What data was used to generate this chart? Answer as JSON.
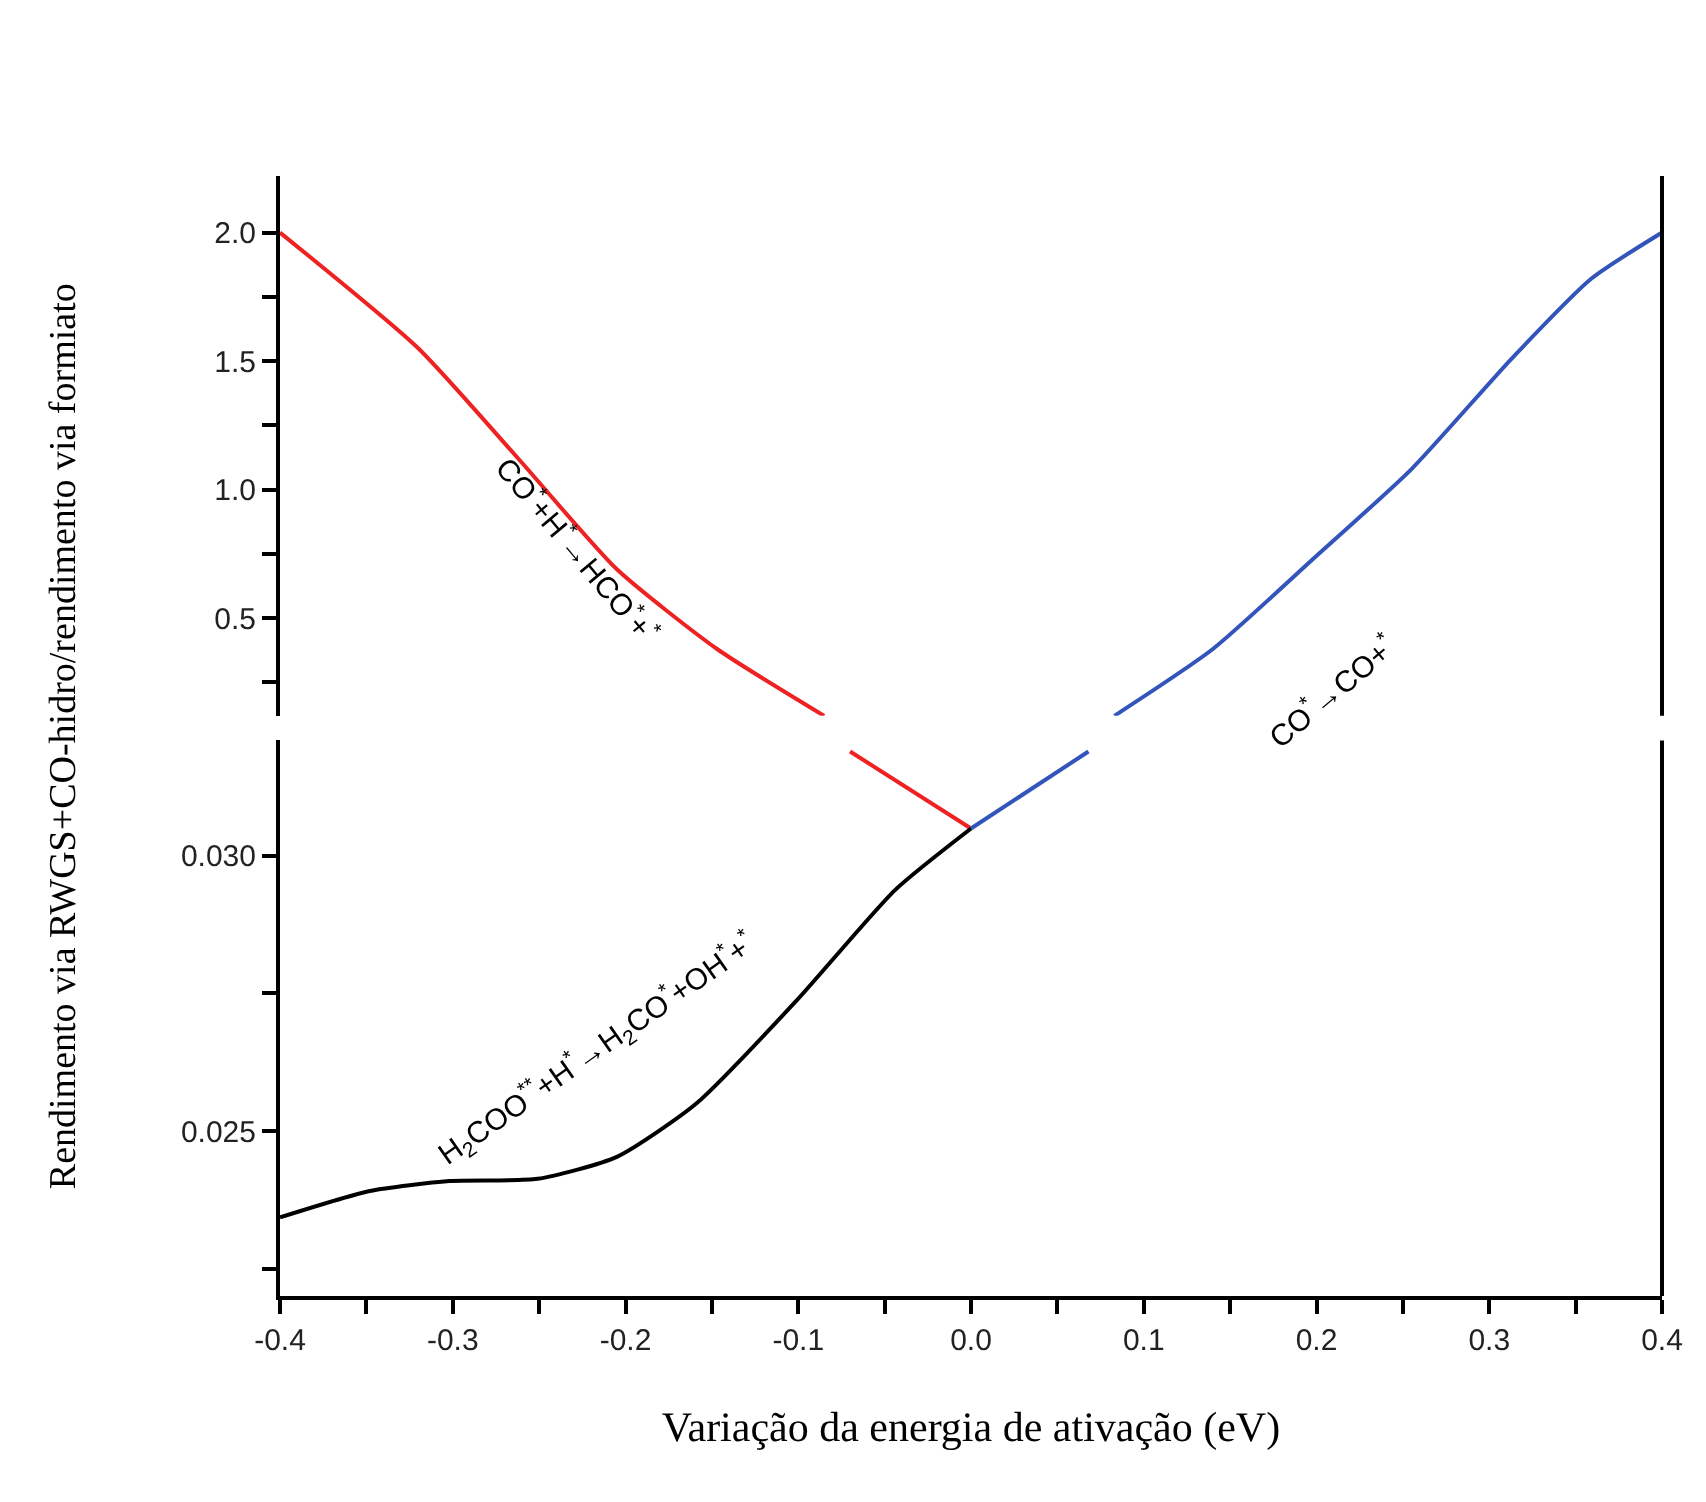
{
  "chart_data": [
    {
      "type": "line",
      "xlim": [
        -0.4,
        0.4
      ],
      "ylim": [
        0.12,
        2.22
      ],
      "tick_labels": "y",
      "line_style": "solid",
      "marker": "none",
      "yticks": [
        {
          "value": 0.25,
          "label": null
        },
        0.5,
        {
          "value": 0.75,
          "label": null
        },
        {
          "value": 1,
          "label": "1.0"
        },
        {
          "value": 1.25,
          "label": null
        },
        1.5,
        {
          "value": 1.75,
          "label": null
        },
        {
          "value": 2,
          "label": "2.0"
        }
      ],
      "series": [
        {
          "color": "#ee2222",
          "x": [
            -0.4,
            -0.32,
            -0.262,
            -0.205,
            -0.147,
            -0.085
          ],
          "values": [
            2.0,
            1.55,
            1.12,
            0.69,
            0.38,
            0.12
          ]
        },
        {
          "color": "#3355bb",
          "x": [
            0.083,
            0.14,
            0.198,
            0.255,
            0.313,
            0.359,
            0.4
          ],
          "values": [
            0.12,
            0.38,
            0.73,
            1.08,
            1.51,
            1.82,
            2.0
          ]
        }
      ],
      "annotations": [
        "CO$^{*}$+H$^{*}$→HCO$^{*}$+$^{*}$",
        "CO$^{*}$→CO+$^{*}$"
      ]
    },
    {
      "type": "line",
      "xlim": [
        -0.4,
        0.4
      ],
      "ylim": [
        0.022,
        0.0321
      ],
      "line_style": "solid",
      "marker": "none",
      "xlabel": "Variação da energia de ativação (eV)",
      "ylabel": "Rendimento via RWGS+CO-hidro/rendimento via formiato",
      "xticks": [
        -0.4,
        {
          "value": -0.35,
          "label": null
        },
        -0.3,
        {
          "value": -0.25,
          "label": null
        },
        -0.2,
        {
          "value": -0.15,
          "label": null
        },
        -0.1,
        {
          "value": -0.05,
          "label": null
        },
        {
          "value": 0,
          "label": "0.0"
        },
        {
          "value": 0.05,
          "label": null
        },
        0.1,
        {
          "value": 0.15,
          "label": null
        },
        0.2,
        {
          "value": 0.25,
          "label": null
        },
        0.3,
        {
          "value": 0.35,
          "label": null
        },
        0.4
      ],
      "yticks": [
        {
          "value": 0.0225,
          "label": null
        },
        0.025,
        {
          "value": 0.0275,
          "label": null
        },
        {
          "value": 0.03,
          "label": "0.030"
        }
      ],
      "series": [
        {
          "color": "#ee2222",
          "x": [
            -0.07,
            0.0
          ],
          "values": [
            0.0319,
            0.0305
          ]
        },
        {
          "color": "#3355bb",
          "x": [
            0.0,
            0.068
          ],
          "values": [
            0.0305,
            0.0319
          ]
        },
        {
          "color": "#000000",
          "x": [
            -0.4,
            -0.348,
            -0.302,
            -0.251,
            -0.205,
            -0.159,
            -0.101,
            -0.044,
            0.0
          ],
          "values": [
            0.02343,
            0.02391,
            0.02409,
            0.02413,
            0.02453,
            0.0255,
            0.02737,
            0.02938,
            0.0305
          ]
        }
      ],
      "annotations": [
        "H$_{2}$COO$^{**}$+H$^{*}$→H$_{2}$CO$^{*}$+OH$^{*}$+$^{*}$"
      ]
    }
  ]
}
